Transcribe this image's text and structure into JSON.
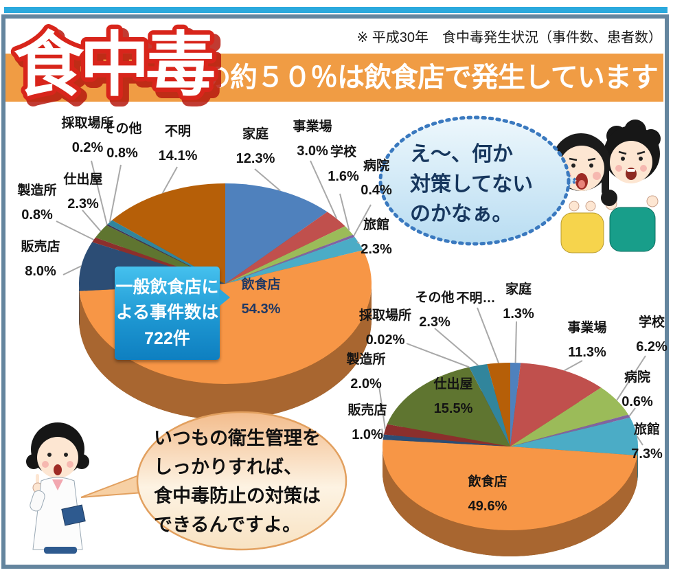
{
  "header": {
    "note": "※ 平成30年　食中毒発生状況（事件数、患者数）",
    "title": "食中毒",
    "banner_text": "の約５０％は飲食店で発生しています"
  },
  "callout": {
    "line1": "一般飲食店に",
    "line2": "よる事件数は",
    "line3": "722件"
  },
  "speech_kids": {
    "line1": "え～、何か",
    "line2": "対策してない",
    "line3": "のかなぁ。"
  },
  "speech_doctor": {
    "line1": "いつもの衛生管理を",
    "line2": "しっかりすれば、",
    "line3": "食中毒防止の対策は",
    "line4": "できるんですよ。"
  },
  "theme": {
    "frame": "#64859E",
    "cyan": "#2BA9DD",
    "banner": "#F09C44",
    "title-red": "#D8251B",
    "kids-border": "#3A79BF",
    "doc-border": "#E2A05F",
    "leader": "#A8A8A8"
  },
  "chart_data": [
    {
      "type": "pie",
      "position": "left",
      "style": "3d",
      "start_angle_deg": 0,
      "slices": [
        {
          "label": "家庭",
          "value": 12.3,
          "pct_label": "12.3%",
          "color": "#4F81BD"
        },
        {
          "label": "事業場",
          "value": 3.0,
          "pct_label": "3.0%",
          "color": "#C0504D"
        },
        {
          "label": "学校",
          "value": 1.6,
          "pct_label": "1.6%",
          "color": "#9BBB59"
        },
        {
          "label": "病院",
          "value": 0.4,
          "pct_label": "0.4%",
          "color": "#8064A2"
        },
        {
          "label": "旅館",
          "value": 2.3,
          "pct_label": "2.3%",
          "color": "#4BACC6"
        },
        {
          "label": "飲食店",
          "value": 54.3,
          "pct_label": "54.3%",
          "color": "#F79646"
        },
        {
          "label": "販売店",
          "value": 8.0,
          "pct_label": "8.0%",
          "color": "#2C4D75"
        },
        {
          "label": "製造所",
          "value": 0.8,
          "pct_label": "0.8%",
          "color": "#8C2F2C"
        },
        {
          "label": "仕出屋",
          "value": 2.3,
          "pct_label": "2.3%",
          "color": "#5F7530"
        },
        {
          "label": "採取場所",
          "value": 0.2,
          "pct_label": "0.2%",
          "color": "#3F3151"
        },
        {
          "label": "その他",
          "value": 0.8,
          "pct_label": "0.8%",
          "color": "#31859C"
        },
        {
          "label": "不明",
          "value": 14.1,
          "pct_label": "14.1%",
          "color": "#B65F08"
        }
      ]
    },
    {
      "type": "pie",
      "position": "right",
      "style": "3d",
      "start_angle_deg": 0,
      "slices": [
        {
          "label": "家庭",
          "value": 1.3,
          "pct_label": "1.3%",
          "color": "#4F81BD"
        },
        {
          "label": "事業場",
          "value": 11.3,
          "pct_label": "11.3%",
          "color": "#C0504D"
        },
        {
          "label": "学校",
          "value": 6.2,
          "pct_label": "6.2%",
          "color": "#9BBB59"
        },
        {
          "label": "病院",
          "value": 0.6,
          "pct_label": "0.6%",
          "color": "#8064A2"
        },
        {
          "label": "旅館",
          "value": 7.3,
          "pct_label": "7.3%",
          "color": "#4BACC6"
        },
        {
          "label": "飲食店",
          "value": 49.6,
          "pct_label": "49.6%",
          "color": "#F79646"
        },
        {
          "label": "販売店",
          "value": 1.0,
          "pct_label": "1.0%",
          "color": "#2C4D75"
        },
        {
          "label": "製造所",
          "value": 2.0,
          "pct_label": "2.0%",
          "color": "#8C2F2C"
        },
        {
          "label": "仕出屋",
          "value": 15.5,
          "pct_label": "15.5%",
          "color": "#5F7530"
        },
        {
          "label": "採取場所",
          "value": 0.02,
          "pct_label": "0.02%",
          "color": "#3F3151"
        },
        {
          "label": "その他",
          "value": 2.3,
          "pct_label": "2.3%",
          "color": "#31859C"
        },
        {
          "label": "不明…",
          "value": 2.9,
          "pct_label": "",
          "color": "#B65F08"
        }
      ]
    }
  ]
}
